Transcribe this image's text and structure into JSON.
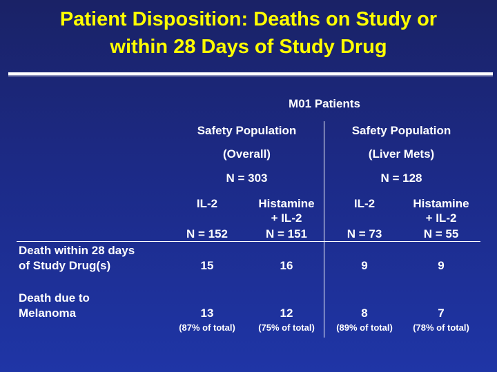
{
  "title": {
    "line1": "Patient Disposition:  Deaths on Study or",
    "line2": "within 28 Days of Study Drug"
  },
  "table": {
    "caption": "M01 Patients",
    "groups": [
      {
        "line1": "Safety Population",
        "line2": "(Overall)",
        "n": "N = 303"
      },
      {
        "line1": "Safety Population",
        "line2": "(Liver Mets)",
        "n": "N = 128"
      }
    ],
    "arms": [
      {
        "line1": "IL-2",
        "line2": "",
        "line3": "",
        "n": "N = 152"
      },
      {
        "line1": "Histamine",
        "line2": "+ IL-2",
        "line3": "",
        "n": "N = 151"
      },
      {
        "line1": "IL-2",
        "line2": "",
        "line3": "",
        "n": "N = 73"
      },
      {
        "line1": "Histamine",
        "line2": "+ IL-2",
        "line3": "",
        "n": "N = 55"
      }
    ],
    "rows": [
      {
        "label1": "Death within 28 days",
        "label2": "of Study Drug(s)",
        "values": [
          "15",
          "16",
          "9",
          "9"
        ]
      },
      {
        "label1": "Death due to",
        "label2": "Melanoma",
        "values": [
          "13",
          "12",
          "8",
          "7"
        ],
        "notes": [
          "(87% of total)",
          "(75% of total)",
          "(89% of total)",
          "(78% of total)"
        ]
      }
    ]
  }
}
